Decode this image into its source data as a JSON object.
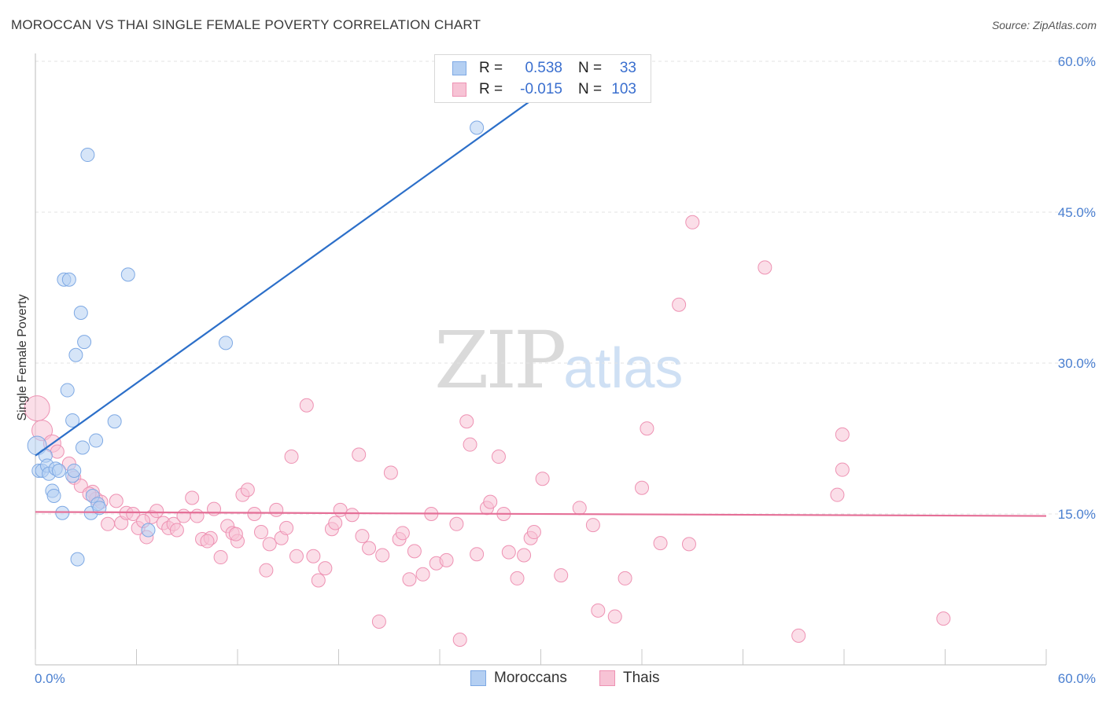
{
  "header": {
    "title": "MOROCCAN VS THAI SINGLE FEMALE POVERTY CORRELATION CHART",
    "source": "Source: ZipAtlas.com"
  },
  "watermark": {
    "part1": "ZIP",
    "part2": "atlas"
  },
  "legend": {
    "rows": [
      {
        "r_label": "R =",
        "r_value": "0.538",
        "n_label": "N =",
        "n_value": "33",
        "color": "#a9c8f0",
        "border": "#7ea9e4"
      },
      {
        "r_label": "R =",
        "r_value": "-0.015",
        "n_label": "N =",
        "n_value": "103",
        "color": "#f7bfd2",
        "border": "#ee92b3"
      }
    ]
  },
  "bottom_legend": {
    "series1": "Moroccans",
    "series2": "Thais"
  },
  "chart_data": {
    "type": "scatter",
    "title": "MOROCCAN VS THAI SINGLE FEMALE POVERTY CORRELATION CHART",
    "ylabel": "Single Female Poverty",
    "xlabel": "",
    "xlim": [
      0,
      60
    ],
    "ylim": [
      0,
      60
    ],
    "x_tick_labels": [
      "0.0%",
      "60.0%"
    ],
    "y_ticks": [
      15,
      30,
      45,
      60
    ],
    "y_tick_labels": [
      "15.0%",
      "30.0%",
      "45.0%",
      "60.0%"
    ],
    "grid": true,
    "series": [
      {
        "name": "Moroccans",
        "color": "#7ea9e4",
        "fill": "#b4cff2",
        "trend": {
          "x": [
            0.0,
            31.0
          ],
          "y": [
            20.8,
            58.0
          ],
          "color": "#2c6fc9"
        },
        "points": [
          [
            0.1,
            21.8
          ],
          [
            0.2,
            19.3
          ],
          [
            0.4,
            19.3
          ],
          [
            0.6,
            20.8
          ],
          [
            0.7,
            19.8
          ],
          [
            0.8,
            19.0
          ],
          [
            1.0,
            17.3
          ],
          [
            1.1,
            16.8
          ],
          [
            1.2,
            19.5
          ],
          [
            1.4,
            19.3
          ],
          [
            1.6,
            15.1
          ],
          [
            1.7,
            38.3
          ],
          [
            2.0,
            38.3
          ],
          [
            1.9,
            27.3
          ],
          [
            2.2,
            24.3
          ],
          [
            2.2,
            18.8
          ],
          [
            2.4,
            30.8
          ],
          [
            2.5,
            10.5
          ],
          [
            2.7,
            35.0
          ],
          [
            2.8,
            21.6
          ],
          [
            2.9,
            32.1
          ],
          [
            3.1,
            50.7
          ],
          [
            3.3,
            15.1
          ],
          [
            3.4,
            16.8
          ],
          [
            3.6,
            22.3
          ],
          [
            3.7,
            16.0
          ],
          [
            4.7,
            24.2
          ],
          [
            5.5,
            38.8
          ],
          [
            6.7,
            13.4
          ],
          [
            11.3,
            32.0
          ],
          [
            26.2,
            53.4
          ],
          [
            2.3,
            19.3
          ],
          [
            3.8,
            15.6
          ]
        ]
      },
      {
        "name": "Thais",
        "color": "#ee92b3",
        "fill": "#f7c3d5",
        "trend": {
          "x": [
            0.0,
            60.0
          ],
          "y": [
            15.2,
            14.8
          ],
          "color": "#e56f97"
        },
        "points": [
          [
            0.1,
            25.5
          ],
          [
            0.4,
            23.3
          ],
          [
            1.0,
            22.0
          ],
          [
            1.3,
            21.2
          ],
          [
            2.0,
            20.0
          ],
          [
            2.3,
            18.6
          ],
          [
            2.7,
            17.8
          ],
          [
            3.4,
            17.2
          ],
          [
            3.6,
            16.5
          ],
          [
            3.9,
            16.2
          ],
          [
            4.3,
            14.0
          ],
          [
            4.8,
            16.3
          ],
          [
            5.1,
            14.1
          ],
          [
            5.4,
            15.1
          ],
          [
            5.8,
            15.0
          ],
          [
            6.1,
            13.6
          ],
          [
            6.6,
            12.7
          ],
          [
            6.9,
            14.7
          ],
          [
            7.2,
            15.3
          ],
          [
            7.6,
            14.1
          ],
          [
            7.9,
            13.6
          ],
          [
            8.2,
            14.0
          ],
          [
            8.4,
            13.4
          ],
          [
            8.8,
            14.8
          ],
          [
            9.3,
            16.6
          ],
          [
            9.6,
            14.8
          ],
          [
            9.9,
            12.5
          ],
          [
            10.4,
            12.6
          ],
          [
            10.6,
            15.5
          ],
          [
            11.0,
            10.7
          ],
          [
            11.4,
            13.8
          ],
          [
            11.7,
            13.1
          ],
          [
            12.0,
            12.3
          ],
          [
            12.3,
            16.9
          ],
          [
            12.6,
            17.4
          ],
          [
            13.0,
            15.0
          ],
          [
            13.4,
            13.2
          ],
          [
            13.7,
            9.4
          ],
          [
            13.9,
            12.0
          ],
          [
            14.3,
            15.4
          ],
          [
            14.6,
            12.6
          ],
          [
            14.9,
            13.6
          ],
          [
            15.2,
            20.7
          ],
          [
            15.5,
            10.8
          ],
          [
            16.1,
            25.8
          ],
          [
            16.5,
            10.8
          ],
          [
            16.8,
            8.4
          ],
          [
            17.2,
            9.6
          ],
          [
            17.6,
            13.5
          ],
          [
            17.8,
            14.1
          ],
          [
            18.1,
            15.4
          ],
          [
            18.8,
            14.9
          ],
          [
            19.2,
            20.9
          ],
          [
            19.4,
            12.8
          ],
          [
            19.8,
            11.6
          ],
          [
            20.4,
            4.3
          ],
          [
            20.6,
            10.9
          ],
          [
            21.1,
            19.1
          ],
          [
            21.6,
            12.5
          ],
          [
            21.8,
            13.1
          ],
          [
            22.2,
            8.5
          ],
          [
            22.5,
            11.3
          ],
          [
            23.0,
            9.0
          ],
          [
            23.5,
            15.0
          ],
          [
            23.8,
            10.1
          ],
          [
            24.4,
            10.4
          ],
          [
            25.0,
            14.0
          ],
          [
            25.2,
            2.5
          ],
          [
            25.6,
            24.2
          ],
          [
            25.8,
            21.9
          ],
          [
            26.2,
            11.0
          ],
          [
            26.8,
            15.6
          ],
          [
            27.0,
            16.2
          ],
          [
            27.5,
            20.7
          ],
          [
            27.8,
            15.0
          ],
          [
            28.1,
            11.2
          ],
          [
            28.6,
            8.6
          ],
          [
            29.0,
            10.9
          ],
          [
            29.4,
            12.6
          ],
          [
            29.6,
            13.2
          ],
          [
            30.1,
            18.5
          ],
          [
            31.2,
            8.9
          ],
          [
            32.3,
            15.6
          ],
          [
            33.1,
            13.9
          ],
          [
            33.4,
            5.4
          ],
          [
            34.4,
            4.8
          ],
          [
            35.0,
            8.6
          ],
          [
            36.0,
            17.6
          ],
          [
            36.3,
            23.5
          ],
          [
            37.1,
            12.1
          ],
          [
            38.2,
            35.8
          ],
          [
            38.8,
            12.0
          ],
          [
            39.0,
            44.0
          ],
          [
            43.3,
            39.5
          ],
          [
            45.3,
            2.9
          ],
          [
            47.6,
            16.9
          ],
          [
            47.9,
            19.4
          ],
          [
            47.9,
            22.9
          ],
          [
            53.9,
            4.6
          ],
          [
            10.2,
            12.3
          ],
          [
            11.9,
            13.0
          ],
          [
            3.2,
            17.0
          ],
          [
            6.4,
            14.3
          ]
        ]
      }
    ]
  }
}
